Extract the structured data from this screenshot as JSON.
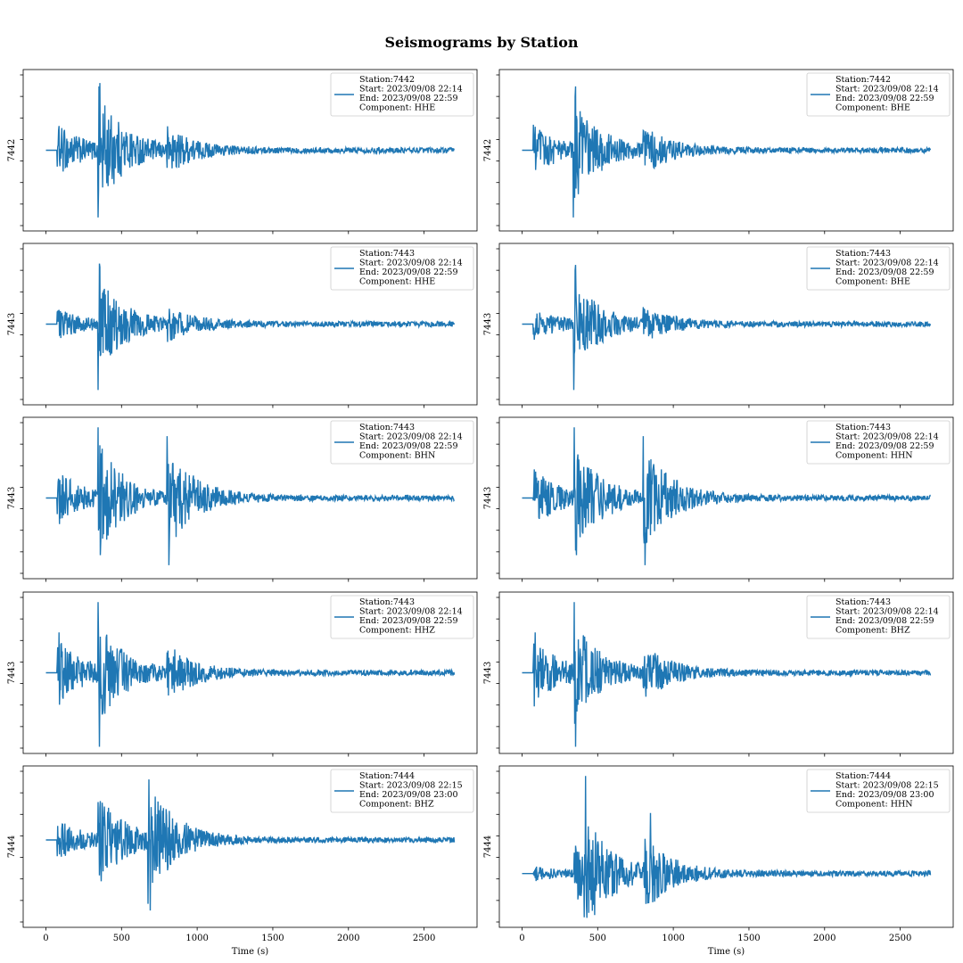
{
  "title": "Seismograms by Station",
  "xlabel": "Time (s)",
  "xticks": [
    "0",
    "500",
    "1000",
    "1500",
    "2000",
    "2500"
  ],
  "colors": {
    "trace": "#1f77b4"
  },
  "chart_data": [
    {
      "type": "line",
      "panel": "row1-left",
      "ylabel": "7442",
      "xlim": [
        -150,
        2850
      ],
      "ylim": [
        -1.2,
        1.2
      ],
      "legend": {
        "placement": "top-right",
        "station": "Station:7442",
        "start": "Start: 2023/09/08 22:14",
        "end": "End: 2023/09/08 22:59",
        "component": "Component: HHE"
      },
      "series": [
        {
          "x_range": [
            0,
            2700
          ],
          "onset_s": 75,
          "events": [
            {
              "t": 75,
              "amp": 0.45
            },
            {
              "t": 345,
              "amp": 0.95
            },
            {
              "t": 800,
              "amp": 0.35
            }
          ],
          "spikes": [
            {
              "t": 345,
              "v": -1.0
            },
            {
              "t": 348,
              "v": -0.6
            },
            {
              "t": 352,
              "v": 0.95
            },
            {
              "t": 356,
              "v": 1.0
            }
          ]
        }
      ]
    },
    {
      "type": "line",
      "panel": "row1-right",
      "ylabel": "7442",
      "xlim": [
        -150,
        2850
      ],
      "ylim": [
        -1.2,
        1.2
      ],
      "legend": {
        "placement": "top-right",
        "station": "Station:7442",
        "start": "Start: 2023/09/08 22:14",
        "end": "End: 2023/09/08 22:59",
        "component": "Component: BHE"
      },
      "series": [
        {
          "x_range": [
            0,
            2700
          ],
          "onset_s": 75,
          "events": [
            {
              "t": 75,
              "amp": 0.45
            },
            {
              "t": 345,
              "amp": 0.85
            },
            {
              "t": 800,
              "amp": 0.35
            }
          ],
          "spikes": [
            {
              "t": 340,
              "v": -1.0
            },
            {
              "t": 345,
              "v": -0.5
            },
            {
              "t": 350,
              "v": 0.8
            },
            {
              "t": 353,
              "v": 0.95
            }
          ]
        }
      ]
    },
    {
      "type": "line",
      "panel": "row2-left",
      "ylabel": "7443",
      "xlim": [
        -150,
        2850
      ],
      "ylim": [
        -1.2,
        1.2
      ],
      "legend": {
        "placement": "top-right",
        "station": "Station:7443",
        "start": "Start: 2023/09/08 22:14",
        "end": "End: 2023/09/08 22:59",
        "component": "Component: HHE"
      },
      "series": [
        {
          "x_range": [
            0,
            2700
          ],
          "onset_s": 75,
          "events": [
            {
              "t": 75,
              "amp": 0.25
            },
            {
              "t": 345,
              "amp": 0.8
            },
            {
              "t": 800,
              "amp": 0.25
            }
          ],
          "spikes": [
            {
              "t": 345,
              "v": -0.98
            },
            {
              "t": 350,
              "v": -0.4
            },
            {
              "t": 355,
              "v": 0.9
            },
            {
              "t": 358,
              "v": 0.85
            }
          ]
        }
      ]
    },
    {
      "type": "line",
      "panel": "row2-right",
      "ylabel": "7443",
      "xlim": [
        -150,
        2850
      ],
      "ylim": [
        -1.2,
        1.2
      ],
      "legend": {
        "placement": "top-right",
        "station": "Station:7443",
        "start": "Start: 2023/09/08 22:14",
        "end": "End: 2023/09/08 22:59",
        "component": "Component: BHE"
      },
      "series": [
        {
          "x_range": [
            0,
            2700
          ],
          "onset_s": 75,
          "events": [
            {
              "t": 75,
              "amp": 0.25
            },
            {
              "t": 345,
              "amp": 0.75
            },
            {
              "t": 800,
              "amp": 0.25
            }
          ],
          "spikes": [
            {
              "t": 342,
              "v": -0.98
            },
            {
              "t": 347,
              "v": -0.4
            },
            {
              "t": 352,
              "v": 0.8
            },
            {
              "t": 355,
              "v": 0.88
            }
          ]
        }
      ]
    },
    {
      "type": "line",
      "panel": "row3-left",
      "ylabel": "7443",
      "xlim": [
        -150,
        2850
      ],
      "ylim": [
        -1.2,
        1.2
      ],
      "legend": {
        "placement": "top-right",
        "station": "Station:7443",
        "start": "Start: 2023/09/08 22:14",
        "end": "End: 2023/09/08 22:59",
        "component": "Component: BHN"
      },
      "series": [
        {
          "x_range": [
            0,
            2700
          ],
          "onset_s": 75,
          "events": [
            {
              "t": 75,
              "amp": 0.5
            },
            {
              "t": 345,
              "amp": 0.9
            },
            {
              "t": 800,
              "amp": 0.9
            }
          ],
          "spikes": [
            {
              "t": 345,
              "v": 1.05
            },
            {
              "t": 360,
              "v": -0.85
            },
            {
              "t": 800,
              "v": 0.92
            },
            {
              "t": 812,
              "v": -1.0
            }
          ]
        }
      ]
    },
    {
      "type": "line",
      "panel": "row3-right",
      "ylabel": "7443",
      "xlim": [
        -150,
        2850
      ],
      "ylim": [
        -1.2,
        1.2
      ],
      "legend": {
        "placement": "top-right",
        "station": "Station:7443",
        "start": "Start: 2023/09/08 22:14",
        "end": "End: 2023/09/08 22:59",
        "component": "Component: HHN"
      },
      "series": [
        {
          "x_range": [
            0,
            2700
          ],
          "onset_s": 75,
          "events": [
            {
              "t": 75,
              "amp": 0.5
            },
            {
              "t": 345,
              "amp": 0.9
            },
            {
              "t": 800,
              "amp": 0.9
            }
          ],
          "spikes": [
            {
              "t": 345,
              "v": 1.05
            },
            {
              "t": 360,
              "v": -0.85
            },
            {
              "t": 800,
              "v": 0.92
            },
            {
              "t": 812,
              "v": -1.0
            }
          ]
        }
      ]
    },
    {
      "type": "line",
      "panel": "row4-left",
      "ylabel": "7443",
      "xlim": [
        -150,
        2850
      ],
      "ylim": [
        -1.2,
        1.2
      ],
      "legend": {
        "placement": "top-right",
        "station": "Station:7443",
        "start": "Start: 2023/09/08 22:14",
        "end": "End: 2023/09/08 22:59",
        "component": "Component: HHZ"
      },
      "series": [
        {
          "x_range": [
            0,
            2700
          ],
          "onset_s": 75,
          "events": [
            {
              "t": 75,
              "amp": 0.6
            },
            {
              "t": 345,
              "amp": 0.8
            },
            {
              "t": 800,
              "amp": 0.45
            }
          ],
          "spikes": [
            {
              "t": 88,
              "v": 0.6
            },
            {
              "t": 345,
              "v": 1.05
            },
            {
              "t": 355,
              "v": -1.1
            }
          ]
        }
      ]
    },
    {
      "type": "line",
      "panel": "row4-right",
      "ylabel": "7443",
      "xlim": [
        -150,
        2850
      ],
      "ylim": [
        -1.2,
        1.2
      ],
      "legend": {
        "placement": "top-right",
        "station": "Station:7443",
        "start": "Start: 2023/09/08 22:14",
        "end": "End: 2023/09/08 22:59",
        "component": "Component: BHZ"
      },
      "series": [
        {
          "x_range": [
            0,
            2700
          ],
          "onset_s": 75,
          "events": [
            {
              "t": 75,
              "amp": 0.6
            },
            {
              "t": 345,
              "amp": 0.8
            },
            {
              "t": 800,
              "amp": 0.45
            }
          ],
          "spikes": [
            {
              "t": 88,
              "v": 0.6
            },
            {
              "t": 345,
              "v": 1.05
            },
            {
              "t": 355,
              "v": -1.1
            }
          ]
        }
      ]
    },
    {
      "type": "line",
      "panel": "row5-left",
      "ylabel": "7444",
      "xlim": [
        -150,
        2850
      ],
      "ylim": [
        -1.3,
        1.1
      ],
      "legend": {
        "placement": "top-right",
        "station": "Station:7444",
        "start": "Start: 2023/09/08 22:15",
        "end": "End: 2023/09/08 23:00",
        "component": "Component: BHZ"
      },
      "series": [
        {
          "x_range": [
            0,
            2700
          ],
          "onset_s": 75,
          "events": [
            {
              "t": 75,
              "amp": 0.35
            },
            {
              "t": 345,
              "amp": 0.75
            },
            {
              "t": 690,
              "amp": 0.9
            }
          ],
          "spikes": [
            {
              "t": 675,
              "v": -0.95
            },
            {
              "t": 680,
              "v": 0.9
            },
            {
              "t": 690,
              "v": -1.05
            }
          ]
        }
      ]
    },
    {
      "type": "line",
      "panel": "row5-right",
      "ylabel": "7444",
      "xlim": [
        -150,
        2850
      ],
      "ylim": [
        -0.8,
        1.6
      ],
      "legend": {
        "placement": "top-right",
        "station": "Station:7444",
        "start": "Start: 2023/09/08 22:15",
        "end": "End: 2023/09/08 23:00",
        "component": "Component: HHN"
      },
      "series": [
        {
          "x_range": [
            0,
            2700
          ],
          "onset_s": 75,
          "events": [
            {
              "t": 75,
              "amp": 0.1
            },
            {
              "t": 345,
              "amp": 0.5
            },
            {
              "t": 420,
              "amp": 0.7
            },
            {
              "t": 800,
              "amp": 0.6
            }
          ],
          "spikes": [
            {
              "t": 420,
              "v": 1.45
            },
            {
              "t": 410,
              "v": -0.65
            },
            {
              "t": 850,
              "v": 0.9
            }
          ]
        }
      ]
    }
  ]
}
